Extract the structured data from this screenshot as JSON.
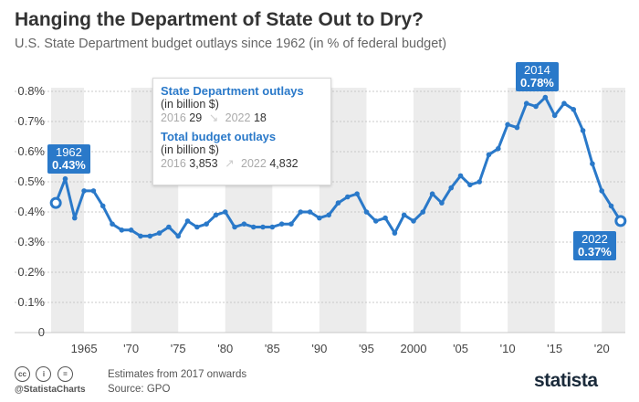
{
  "header": {
    "title": "Hanging the Department of State Out to Dry?",
    "subtitle": "U.S. State Department budget outlays since 1962 (in % of federal budget)"
  },
  "legend": {
    "state": {
      "title": "State Department outlays",
      "unit": "(in billion $)",
      "year_a": "2016",
      "value_a": "29",
      "year_b": "2022",
      "value_b": "18"
    },
    "total": {
      "title": "Total budget outlays",
      "unit": "(in billion $)",
      "year_a": "2016",
      "value_a": "3,853",
      "year_b": "2022",
      "value_b": "4,832"
    }
  },
  "callouts": {
    "start": {
      "year": "1962",
      "value": "0.43%"
    },
    "peak": {
      "year": "2014",
      "value": "0.78%"
    },
    "end": {
      "year": "2022",
      "value": "0.37%"
    }
  },
  "footer": {
    "handle": "@StatistaCharts",
    "note_1": "Estimates from 2017 onwards",
    "note_2": "Source: GPO",
    "brand": "statista"
  },
  "colors": {
    "line": "#2a79c9",
    "band": "#ececec",
    "grid": "#c8c8c8",
    "text": "#333333"
  },
  "chart_data": {
    "type": "line",
    "x": [
      1962,
      1963,
      1964,
      1965,
      1966,
      1967,
      1968,
      1969,
      1970,
      1971,
      1972,
      1973,
      1974,
      1975,
      1976,
      1977,
      1978,
      1979,
      1980,
      1981,
      1982,
      1983,
      1984,
      1985,
      1986,
      1987,
      1988,
      1989,
      1990,
      1991,
      1992,
      1993,
      1994,
      1995,
      1996,
      1997,
      1998,
      1999,
      2000,
      2001,
      2002,
      2003,
      2004,
      2005,
      2006,
      2007,
      2008,
      2009,
      2010,
      2011,
      2012,
      2013,
      2014,
      2015,
      2016,
      2017,
      2018,
      2019,
      2020,
      2021,
      2022
    ],
    "series": [
      {
        "values": [
          0.43,
          0.51,
          0.38,
          0.47,
          0.47,
          0.42,
          0.36,
          0.34,
          0.34,
          0.32,
          0.32,
          0.33,
          0.35,
          0.32,
          0.37,
          0.35,
          0.36,
          0.39,
          0.4,
          0.35,
          0.36,
          0.35,
          0.35,
          0.35,
          0.36,
          0.36,
          0.4,
          0.4,
          0.38,
          0.39,
          0.43,
          0.45,
          0.46,
          0.4,
          0.37,
          0.38,
          0.33,
          0.39,
          0.37,
          0.4,
          0.46,
          0.43,
          0.48,
          0.52,
          0.49,
          0.5,
          0.59,
          0.61,
          0.69,
          0.68,
          0.76,
          0.75,
          0.78,
          0.72,
          0.76,
          0.74,
          0.67,
          0.56,
          0.47,
          0.42,
          0.37
        ]
      }
    ],
    "y_ticks": [
      "0",
      "0.1%",
      "0.2%",
      "0.3%",
      "0.4%",
      "0.5%",
      "0.6%",
      "0.7%",
      "0.8%"
    ],
    "x_ticks": [
      "1965",
      "'70",
      "'75",
      "'80",
      "'85",
      "'90",
      "'95",
      "2000",
      "'05",
      "'10",
      "'15",
      "'20"
    ],
    "ylim": [
      0,
      0.8
    ],
    "xlim": [
      1961.5,
      2022.5
    ],
    "grid": true
  }
}
